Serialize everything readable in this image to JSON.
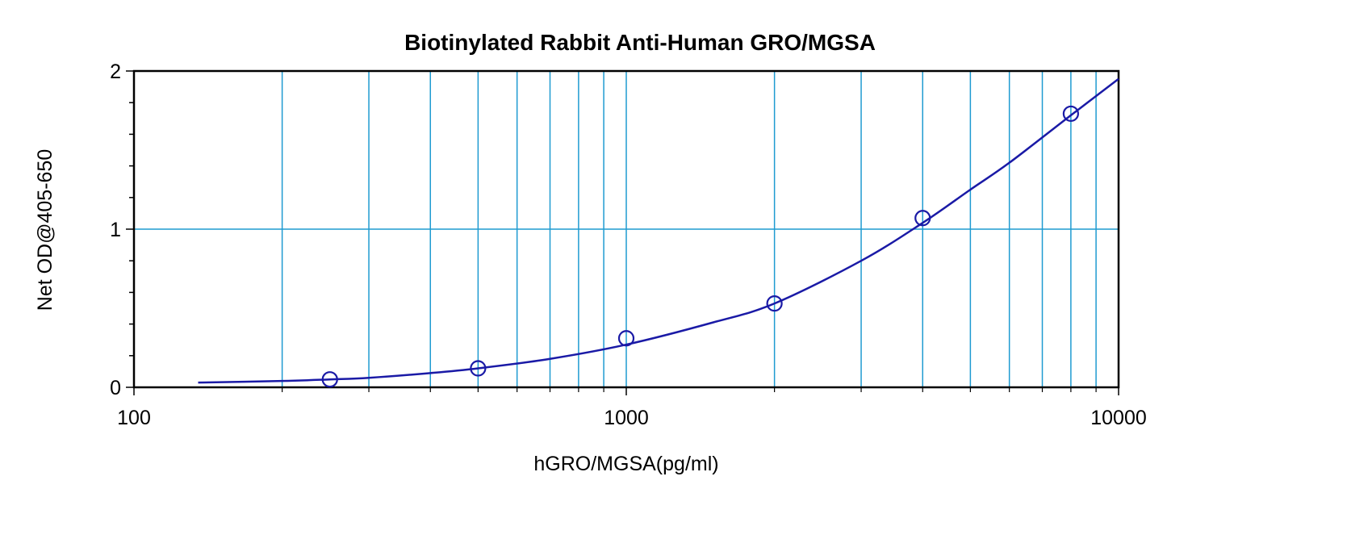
{
  "chart_data": {
    "type": "scatter",
    "title": "Biotinylated Rabbit Anti-Human GRO/MGSA",
    "xlabel": "hGRO/MGSA(pg/ml)",
    "ylabel": "Net OD@405-650",
    "x_scale": "log",
    "xlim": [
      100,
      10000
    ],
    "ylim": [
      0,
      2
    ],
    "x_ticks": [
      {
        "value": 100,
        "label": "100"
      },
      {
        "value": 1000,
        "label": "1000"
      },
      {
        "value": 10000,
        "label": "10000"
      }
    ],
    "y_ticks": [
      {
        "value": 0,
        "label": "0"
      },
      {
        "value": 1,
        "label": "1"
      },
      {
        "value": 2,
        "label": "2"
      }
    ],
    "grid": true,
    "series": [
      {
        "kind": "points",
        "marker": "open-circle",
        "x": [
          250,
          500,
          1000,
          2000,
          4000,
          8000
        ],
        "y": [
          0.05,
          0.12,
          0.31,
          0.53,
          1.07,
          1.73
        ]
      },
      {
        "kind": "fitted-curve",
        "x": [
          135,
          200,
          250,
          300,
          400,
          500,
          700,
          1000,
          1500,
          2000,
          3000,
          4000,
          5000,
          6000,
          8000,
          10000
        ],
        "y": [
          0.03,
          0.04,
          0.05,
          0.06,
          0.09,
          0.12,
          0.18,
          0.27,
          0.41,
          0.53,
          0.8,
          1.04,
          1.25,
          1.42,
          1.72,
          1.95
        ]
      }
    ],
    "colors": {
      "curve": "#1a1aa6",
      "marker": "#1a1aa6",
      "grid": "#1f9bd1",
      "axes": "#000000"
    }
  }
}
